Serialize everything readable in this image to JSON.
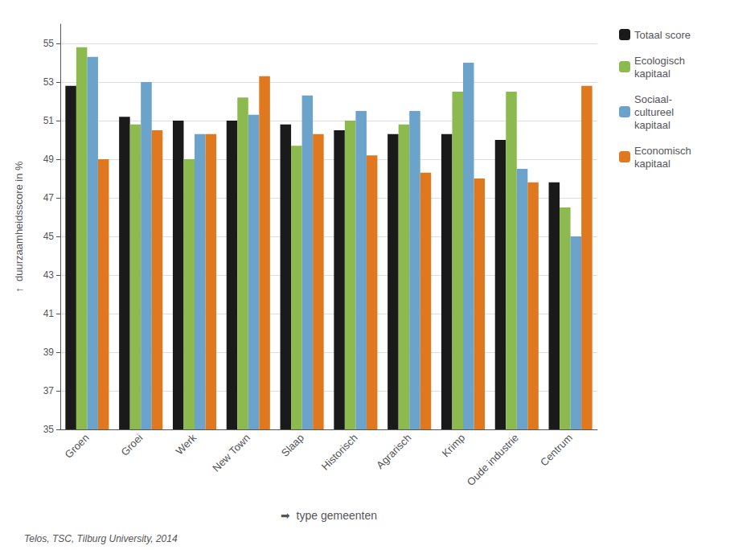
{
  "chart_data": {
    "type": "bar",
    "categories": [
      "Groen",
      "Groei",
      "Werk",
      "New Town",
      "Slaap",
      "Historisch",
      "Agrarisch",
      "Krimp",
      "Oude industrie",
      "Centrum"
    ],
    "series": [
      {
        "name": "Totaal score",
        "color": "#1a1a1a",
        "values": [
          52.8,
          51.2,
          51.0,
          51.0,
          50.8,
          50.5,
          50.3,
          50.3,
          50.0,
          47.8
        ]
      },
      {
        "name": "Ecologisch\nkapitaal",
        "color": "#8cba4f",
        "values": [
          54.8,
          50.8,
          49.0,
          52.2,
          49.7,
          51.0,
          50.8,
          52.5,
          52.5,
          46.5
        ]
      },
      {
        "name": "Sociaal-\ncultureel\nkapitaal",
        "color": "#6ba3cb",
        "values": [
          54.3,
          53.0,
          50.3,
          51.3,
          52.3,
          51.5,
          51.5,
          54.0,
          48.5,
          45.0
        ]
      },
      {
        "name": "Economisch\nkapitaal",
        "color": "#e07820",
        "values": [
          49.0,
          50.5,
          50.3,
          53.3,
          50.3,
          49.2,
          48.3,
          48.0,
          47.8,
          52.8
        ]
      }
    ],
    "ylabel": "↑  duurzaamheidsscore in %",
    "xlabel": "➡  type gemeenten",
    "annotations": [
      "Telos, TSC, Tilburg University, 2014"
    ],
    "ylim": [
      35,
      56
    ],
    "yticks": [
      35,
      37,
      39,
      41,
      43,
      45,
      47,
      49,
      51,
      53,
      55
    ],
    "grid": true,
    "legend": "right"
  }
}
